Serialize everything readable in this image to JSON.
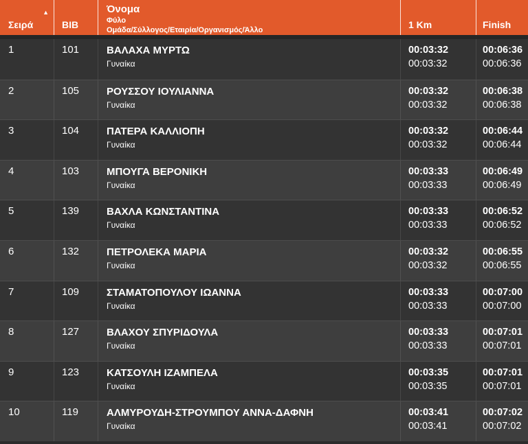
{
  "colors": {
    "accent": "#E25A2B",
    "row_dark": "#333333",
    "row_light": "#3E3E3E",
    "divider_dark": "#262626",
    "text_white": "#FFFFFF"
  },
  "table": {
    "columns": {
      "rank": "Σειρά",
      "bib": "BIB",
      "name": "Όνομα",
      "name_sub1": "Φύλο",
      "name_sub2": "Ομάδα/Σύλλογος/Εταιρία/Οργανισμός/Άλλο",
      "km1": "1 Km",
      "finish": "Finish"
    },
    "sort_icon": "▲",
    "rows": [
      {
        "rank": "1",
        "bib": "101",
        "name": "ΒΑΛΑΧΑ ΜΥΡΤΩ",
        "gender": "Γυναίκα",
        "km1_a": "00:03:32",
        "km1_b": "00:03:32",
        "finish_a": "00:06:36",
        "finish_b": "00:06:36"
      },
      {
        "rank": "2",
        "bib": "105",
        "name": "ΡΟΥΣΣΟΥ ΙΟΥΛΙΑΝΝΑ",
        "gender": "Γυναίκα",
        "km1_a": "00:03:32",
        "km1_b": "00:03:32",
        "finish_a": "00:06:38",
        "finish_b": "00:06:38"
      },
      {
        "rank": "3",
        "bib": "104",
        "name": "ΠΑΤΕΡΑ ΚΑΛΛΙΟΠΗ",
        "gender": "Γυναίκα",
        "km1_a": "00:03:32",
        "km1_b": "00:03:32",
        "finish_a": "00:06:44",
        "finish_b": "00:06:44"
      },
      {
        "rank": "4",
        "bib": "103",
        "name": "ΜΠΟΥΓΑ ΒΕΡΟΝΙΚΗ",
        "gender": "Γυναίκα",
        "km1_a": "00:03:33",
        "km1_b": "00:03:33",
        "finish_a": "00:06:49",
        "finish_b": "00:06:49"
      },
      {
        "rank": "5",
        "bib": "139",
        "name": "ΒΑΧΛΑ ΚΩΝΣΤΑΝΤΙΝΑ",
        "gender": "Γυναίκα",
        "km1_a": "00:03:33",
        "km1_b": "00:03:33",
        "finish_a": "00:06:52",
        "finish_b": "00:06:52"
      },
      {
        "rank": "6",
        "bib": "132",
        "name": "ΠΕΤΡΟΛΕΚΑ ΜΑΡΙΑ",
        "gender": "Γυναίκα",
        "km1_a": "00:03:32",
        "km1_b": "00:03:32",
        "finish_a": "00:06:55",
        "finish_b": "00:06:55"
      },
      {
        "rank": "7",
        "bib": "109",
        "name": "ΣΤΑΜΑΤΟΠΟΥΛΟΥ ΙΩΑΝΝΑ",
        "gender": "Γυναίκα",
        "km1_a": "00:03:33",
        "km1_b": "00:03:33",
        "finish_a": "00:07:00",
        "finish_b": "00:07:00"
      },
      {
        "rank": "8",
        "bib": "127",
        "name": "ΒΛΑΧΟΥ ΣΠΥΡΙΔΟΥΛΑ",
        "gender": "Γυναίκα",
        "km1_a": "00:03:33",
        "km1_b": "00:03:33",
        "finish_a": "00:07:01",
        "finish_b": "00:07:01"
      },
      {
        "rank": "9",
        "bib": "123",
        "name": "ΚΑΤΣΟΥΛΗ ΙΖΑΜΠΕΛΑ",
        "gender": "Γυναίκα",
        "km1_a": "00:03:35",
        "km1_b": "00:03:35",
        "finish_a": "00:07:01",
        "finish_b": "00:07:01"
      },
      {
        "rank": "10",
        "bib": "119",
        "name": "ΑΛΜΥΡΟΥΔΗ-ΣΤΡΟΥΜΠΟΥ ΑΝΝΑ-ΔΑΦΝΗ",
        "gender": "Γυναίκα",
        "km1_a": "00:03:41",
        "km1_b": "00:03:41",
        "finish_a": "00:07:02",
        "finish_b": "00:07:02"
      }
    ]
  }
}
